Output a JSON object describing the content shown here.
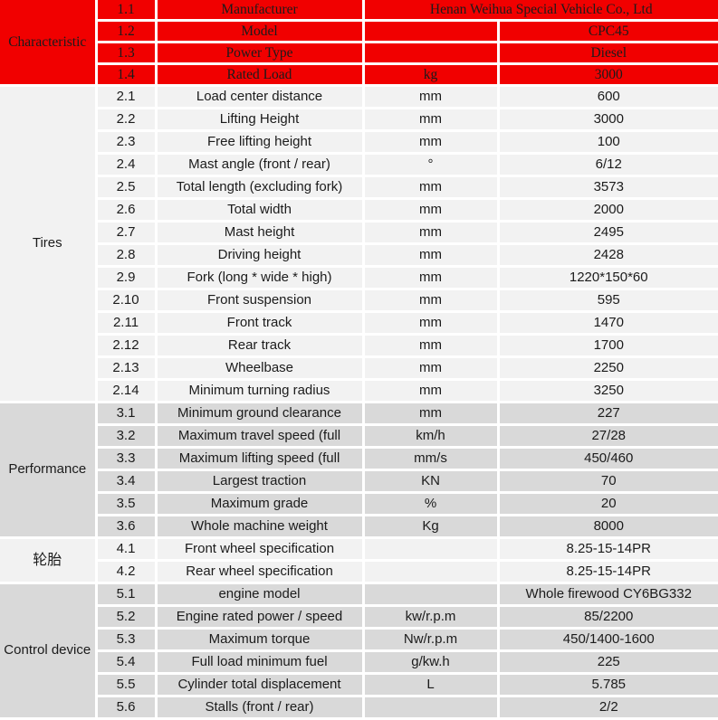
{
  "table": {
    "colors": {
      "header_red": "#f10000",
      "row_light": "#f2f2f2",
      "row_dark": "#d9d9d9",
      "grid_border": "#ffffff",
      "text": "#1b1b1b"
    },
    "sections": [
      {
        "category": "Characteristic",
        "style": "red",
        "rows": [
          {
            "no": "1.1",
            "name": "Manufacturer",
            "unit": null,
            "value": "Henan Weihua Special Vehicle Co., Ltd",
            "value_colspan": 2
          },
          {
            "no": "1.2",
            "name": "Model",
            "unit": "",
            "value": "CPC45"
          },
          {
            "no": "1.3",
            "name": "Power Type",
            "unit": "",
            "value": "Diesel"
          },
          {
            "no": "1.4",
            "name": "Rated Load",
            "unit": "kg",
            "value": "3000"
          }
        ]
      },
      {
        "category": "Tires",
        "style": "light",
        "rows": [
          {
            "no": "2.1",
            "name": "Load center distance",
            "unit": "mm",
            "value": "600"
          },
          {
            "no": "2.2",
            "name": "Lifting Height",
            "unit": "mm",
            "value": "3000"
          },
          {
            "no": "2.3",
            "name": "Free lifting height",
            "unit": "mm",
            "value": "100"
          },
          {
            "no": "2.4",
            "name": "Mast angle (front / rear)",
            "unit": "°",
            "value": "6/12"
          },
          {
            "no": "2.5",
            "name": "Total length (excluding fork)",
            "unit": "mm",
            "value": "3573"
          },
          {
            "no": "2.6",
            "name": "Total width",
            "unit": "mm",
            "value": "2000"
          },
          {
            "no": "2.7",
            "name": "Mast height",
            "unit": "mm",
            "value": "2495"
          },
          {
            "no": "2.8",
            "name": "Driving height",
            "unit": "mm",
            "value": "2428"
          },
          {
            "no": "2.9",
            "name": "Fork (long * wide * high)",
            "unit": "mm",
            "value": "1220*150*60"
          },
          {
            "no": "2.10",
            "name": "Front suspension",
            "unit": "mm",
            "value": "595"
          },
          {
            "no": "2.11",
            "name": "Front track",
            "unit": "mm",
            "value": "1470"
          },
          {
            "no": "2.12",
            "name": "Rear track",
            "unit": "mm",
            "value": "1700"
          },
          {
            "no": "2.13",
            "name": "Wheelbase",
            "unit": "mm",
            "value": "2250"
          },
          {
            "no": "2.14",
            "name": "Minimum turning radius",
            "unit": "mm",
            "value": "3250"
          }
        ]
      },
      {
        "category": "Performance",
        "style": "dark",
        "rows": [
          {
            "no": "3.1",
            "name": "Minimum ground clearance",
            "unit": "mm",
            "value": "227"
          },
          {
            "no": "3.2",
            "name": "Maximum travel speed (full",
            "unit": "km/h",
            "value": "27/28"
          },
          {
            "no": "3.3",
            "name": "Maximum lifting speed (full",
            "unit": "mm/s",
            "value": "450/460"
          },
          {
            "no": "3.4",
            "name": "Largest traction",
            "unit": "KN",
            "value": "70"
          },
          {
            "no": "3.5",
            "name": "Maximum grade",
            "unit": "%",
            "value": "20"
          },
          {
            "no": "3.6",
            "name": "Whole machine weight",
            "unit": "Kg",
            "value": "8000"
          }
        ]
      },
      {
        "category": "轮胎",
        "style": "light",
        "rows": [
          {
            "no": "4.1",
            "name": "Front wheel specification",
            "unit": "",
            "value": "8.25-15-14PR"
          },
          {
            "no": "4.2",
            "name": "Rear wheel specification",
            "unit": "",
            "value": "8.25-15-14PR"
          }
        ]
      },
      {
        "category": "Control device",
        "style": "dark",
        "rows": [
          {
            "no": "5.1",
            "name": "engine model",
            "unit": "",
            "value": "Whole firewood CY6BG332"
          },
          {
            "no": "5.2",
            "name": "Engine rated power / speed",
            "unit": "kw/r.p.m",
            "value": "85/2200"
          },
          {
            "no": "5.3",
            "name": "Maximum torque",
            "unit": "Nw/r.p.m",
            "value": "450/1400-1600"
          },
          {
            "no": "5.4",
            "name": "Full load minimum fuel",
            "unit": "g/kw.h",
            "value": "225"
          },
          {
            "no": "5.5",
            "name": "Cylinder total displacement",
            "unit": "L",
            "value": "5.785"
          },
          {
            "no": "5.6",
            "name": "Stalls (front / rear)",
            "unit": "",
            "value": "2/2"
          }
        ]
      }
    ]
  }
}
